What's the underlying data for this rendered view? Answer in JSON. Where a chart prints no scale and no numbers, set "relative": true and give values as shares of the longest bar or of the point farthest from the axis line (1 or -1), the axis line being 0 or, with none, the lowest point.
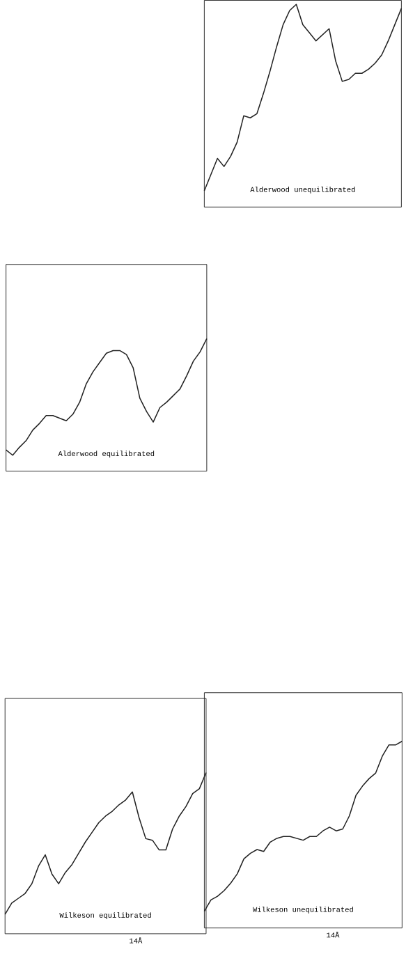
{
  "chart_data": [
    {
      "type": "line",
      "title": "Alderwood equilibrated",
      "relative": true,
      "tick_labels": false,
      "categories": [
        null,
        null,
        null,
        null,
        null,
        null,
        null,
        null,
        null,
        null,
        null,
        null,
        null,
        null,
        null,
        null,
        null,
        null,
        null,
        null,
        null,
        null,
        null,
        null,
        null,
        null,
        null,
        null,
        null,
        null,
        null
      ],
      "series": [
        {
          "color": "#222222",
          "values": [
            0.16,
            0.12,
            0.18,
            0.23,
            0.31,
            0.36,
            0.42,
            0.42,
            0.4,
            0.38,
            0.43,
            0.52,
            0.66,
            0.75,
            0.82,
            0.89,
            0.91,
            0.91,
            0.88,
            0.78,
            0.55,
            0.45,
            0.37,
            0.48,
            0.52,
            0.57,
            0.62,
            0.72,
            0.83,
            0.9,
            1
          ]
        }
      ]
    },
    {
      "type": "line",
      "title": "Alderwood unequilibrated",
      "relative": true,
      "tick_labels": false,
      "categories": [
        null,
        null,
        null,
        null,
        null,
        null,
        null,
        null,
        null,
        null,
        null,
        null,
        null,
        null,
        null,
        null,
        null,
        null,
        null,
        null,
        null,
        null,
        null,
        null,
        null,
        null,
        null,
        null,
        null,
        null,
        null
      ],
      "series": [
        {
          "color": "#222222",
          "values": [
            0.08,
            0.16,
            0.24,
            0.2,
            0.25,
            0.32,
            0.45,
            0.44,
            0.46,
            0.56,
            0.67,
            0.79,
            0.9,
            0.97,
            1,
            0.9,
            0.86,
            0.82,
            0.85,
            0.88,
            0.72,
            0.62,
            0.63,
            0.66,
            0.66,
            0.68,
            0.71,
            0.75,
            0.82,
            0.9,
            0.98
          ]
        }
      ]
    },
    {
      "type": "line",
      "title": "Wilkeson equilibrated",
      "xlabel": "14Å",
      "relative": true,
      "tick_labels": false,
      "categories": [
        null,
        null,
        null,
        null,
        null,
        null,
        null,
        null,
        null,
        null,
        null,
        null,
        null,
        null,
        null,
        null,
        null,
        null,
        null,
        null,
        null,
        null,
        null,
        null,
        null,
        null,
        null,
        null,
        null,
        null,
        null
      ],
      "series": [
        {
          "color": "#222222",
          "values": [
            0.12,
            0.19,
            0.22,
            0.25,
            0.31,
            0.42,
            0.49,
            0.37,
            0.31,
            0.38,
            0.43,
            0.5,
            0.57,
            0.63,
            0.69,
            0.73,
            0.76,
            0.8,
            0.83,
            0.88,
            0.72,
            0.59,
            0.58,
            0.52,
            0.52,
            0.65,
            0.73,
            0.79,
            0.87,
            0.9,
            1
          ]
        }
      ]
    },
    {
      "type": "line",
      "title": "Wilkeson unequilibrated",
      "xlabel": "14Å",
      "relative": true,
      "tick_labels": false,
      "categories": [
        null,
        null,
        null,
        null,
        null,
        null,
        null,
        null,
        null,
        null,
        null,
        null,
        null,
        null,
        null,
        null,
        null,
        null,
        null,
        null,
        null,
        null,
        null,
        null,
        null,
        null,
        null,
        null,
        null,
        null,
        null
      ],
      "series": [
        {
          "color": "#222222",
          "values": [
            0.09,
            0.15,
            0.17,
            0.2,
            0.24,
            0.29,
            0.37,
            0.4,
            0.42,
            0.41,
            0.46,
            0.48,
            0.49,
            0.49,
            0.48,
            0.47,
            0.49,
            0.49,
            0.52,
            0.54,
            0.52,
            0.53,
            0.6,
            0.71,
            0.76,
            0.8,
            0.83,
            0.92,
            0.98,
            0.98,
            1
          ]
        }
      ]
    }
  ]
}
